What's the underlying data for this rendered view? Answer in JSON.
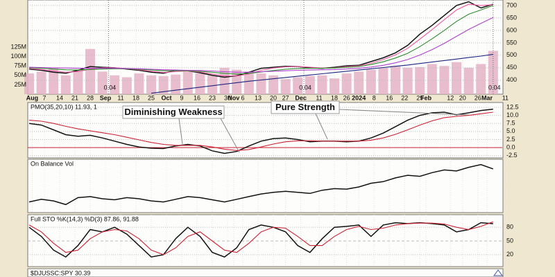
{
  "chart_data": {
    "type": "stock",
    "x": [
      0,
      4,
      8,
      12,
      16,
      20,
      24,
      28,
      32,
      36,
      40,
      44,
      48,
      52,
      56,
      60,
      64,
      68,
      72,
      76,
      80,
      84,
      88,
      92,
      96,
      100,
      104,
      108,
      112,
      116,
      120,
      124,
      128,
      132,
      136,
      140,
      144,
      148,
      152
    ],
    "xlim": [
      0,
      155
    ],
    "xticks": [
      {
        "value": 1,
        "label": "Aug"
      },
      {
        "value": 5,
        "label": "7"
      },
      {
        "value": 10,
        "label": "14"
      },
      {
        "value": 15,
        "label": "21"
      },
      {
        "value": 20,
        "label": "28"
      },
      {
        "value": 25,
        "label": "Sep"
      },
      {
        "value": 30,
        "label": "11"
      },
      {
        "value": 35,
        "label": "18"
      },
      {
        "value": 40,
        "label": "25"
      },
      {
        "value": 45,
        "label": "Oct"
      },
      {
        "value": 50,
        "label": "9"
      },
      {
        "value": 55,
        "label": "16"
      },
      {
        "value": 60,
        "label": "23"
      },
      {
        "value": 65,
        "label": "30"
      },
      {
        "value": 67,
        "label": "Nov"
      },
      {
        "value": 70,
        "label": "6"
      },
      {
        "value": 75,
        "label": "13"
      },
      {
        "value": 80,
        "label": "20"
      },
      {
        "value": 84,
        "label": "27"
      },
      {
        "value": 89,
        "label": "Dec"
      },
      {
        "value": 95,
        "label": "11"
      },
      {
        "value": 100,
        "label": "18"
      },
      {
        "value": 104,
        "label": "26"
      },
      {
        "value": 108,
        "label": "2024"
      },
      {
        "value": 113,
        "label": "8"
      },
      {
        "value": 118,
        "label": "16"
      },
      {
        "value": 123,
        "label": "22"
      },
      {
        "value": 128,
        "label": "29"
      },
      {
        "value": 130,
        "label": "Feb"
      },
      {
        "value": 138,
        "label": "12"
      },
      {
        "value": 142,
        "label": "20"
      },
      {
        "value": 147,
        "label": "26"
      },
      {
        "value": 150,
        "label": "Mar"
      },
      {
        "value": 156,
        "label": "11"
      }
    ],
    "panels": [
      {
        "type": "line",
        "ylim": [
          344,
          722
        ],
        "yticks": [
          400,
          450,
          500,
          550,
          600,
          650,
          700
        ],
        "series": [
          {
            "color": "#111111",
            "values": [
              445,
              440,
              432,
              428,
              440,
              455,
              452,
              450,
              445,
              440,
              432,
              428,
              440,
              438,
              430,
              420,
              412,
              418,
              432,
              448,
              452,
              456,
              455,
              450,
              448,
              452,
              458,
              460,
              475,
              490,
              510,
              540,
              585,
              620,
              660,
              700,
              715,
              690,
              705
            ]
          },
          {
            "color": "#ee5aa0",
            "values": [
              447,
              443,
              437,
              432,
              435,
              445,
              450,
              450,
              447,
              442,
              436,
              431,
              435,
              437,
              433,
              425,
              417,
              417,
              425,
              440,
              449,
              454,
              455,
              452,
              449,
              450,
              455,
              458,
              468,
              483,
              502,
              528,
              565,
              603,
              643,
              682,
              705,
              700,
              703
            ]
          },
          {
            "color": "#2e8b2e",
            "values": [
              450,
              448,
              445,
              442,
              441,
              443,
              445,
              446,
              446,
              444,
              441,
              438,
              438,
              438,
              436,
              432,
              427,
              425,
              427,
              433,
              439,
              444,
              447,
              448,
              448,
              449,
              452,
              455,
              463,
              474,
              489,
              508,
              535,
              566,
              600,
              636,
              665,
              682,
              700
            ]
          },
          {
            "color": "#b040d0",
            "values": [
              452,
              451,
              450,
              449,
              448,
              448,
              448,
              448,
              447,
              446,
              444,
              442,
              441,
              440,
              439,
              437,
              434,
              432,
              432,
              434,
              436,
              438,
              440,
              441,
              442,
              443,
              445,
              448,
              453,
              460,
              470,
              483,
              501,
              523,
              548,
              576,
              604,
              628,
              652
            ]
          },
          {
            "color": "#1a237e",
            "values": [
              null,
              null,
              null,
              null,
              null,
              null,
              null,
              null,
              null,
              null,
              348,
              354,
              360,
              366,
              372,
              378,
              384,
              390,
              396,
              401,
              406,
              411,
              416,
              421,
              426,
              431,
              436,
              441,
              446,
              451,
              456,
              461,
              467,
              473,
              479,
              485,
              491,
              497,
              504
            ]
          }
        ],
        "volume": {
          "color": "#e4b3c6",
          "ylim": [
            0,
            250
          ],
          "yticks": [
            {
              "value": 25,
              "label": "25M"
            },
            {
              "value": 50,
              "label": "50M"
            },
            {
              "value": 75,
              "label": "75M"
            },
            {
              "value": 100,
              "label": "100M"
            },
            {
              "value": 125,
              "label": "125M"
            }
          ],
          "values": [
            55,
            60,
            70,
            50,
            65,
            120,
            60,
            50,
            45,
            55,
            50,
            48,
            52,
            60,
            55,
            50,
            70,
            65,
            60,
            55,
            50,
            40,
            45,
            48,
            50,
            42,
            55,
            60,
            65,
            70,
            75,
            70,
            72,
            80,
            75,
            85,
            70,
            80,
            115
          ]
        },
        "dividends": [
          {
            "x": 26,
            "label": "0.04"
          },
          {
            "x": 90,
            "label": "0.04"
          },
          {
            "x": 152,
            "label": "0.04"
          }
        ]
      },
      {
        "type": "line",
        "title": "PMO(35,20,10) 11.93, 1",
        "ylim": [
          -3.2,
          14
        ],
        "yticks": [
          -2.5,
          {
            "value": 0,
            "label": "0.0"
          },
          2.5,
          {
            "value": 5,
            "label": "5.0"
          },
          7.5,
          {
            "value": 10,
            "label": "10.0"
          },
          12.5
        ],
        "reference_line": 0,
        "series": [
          {
            "color": "#111111",
            "values": [
              7.5,
              7.0,
              5.5,
              4.0,
              3.5,
              3.8,
              3.0,
              2.0,
              1.0,
              0.2,
              -0.2,
              -0.3,
              0.5,
              1.0,
              0.5,
              -1.0,
              -1.8,
              -1.2,
              0.5,
              2.0,
              2.8,
              3.0,
              2.5,
              1.8,
              2.0,
              2.0,
              1.8,
              2.0,
              3.0,
              4.5,
              6.5,
              8.5,
              10.0,
              10.8,
              11.0,
              10.2,
              10.8,
              11.5,
              11.93
            ]
          },
          {
            "color": "#cc2233",
            "values": [
              8.5,
              8.2,
              7.5,
              6.6,
              5.8,
              5.2,
              4.6,
              4.0,
              3.2,
              2.4,
              1.6,
              1.0,
              0.7,
              0.7,
              0.7,
              0.2,
              -0.5,
              -0.9,
              -0.6,
              0.2,
              1.1,
              1.8,
              2.1,
              2.1,
              2.0,
              2.0,
              2.0,
              2.0,
              2.3,
              3.0,
              4.1,
              5.5,
              7.0,
              8.3,
              9.3,
              9.7,
              10.0,
              10.5,
              11.0
            ]
          }
        ],
        "annotations": [
          {
            "text": "Diminishing Weakness",
            "color": "#cc1111"
          },
          {
            "text": "Pure Strength",
            "color": "#227722"
          }
        ]
      },
      {
        "type": "line",
        "title": "On Balance Vol",
        "ylim": [
          0,
          100
        ],
        "series": [
          {
            "color": "#111111",
            "values": [
              20,
              25,
              22,
              15,
              28,
              30,
              26,
              24,
              28,
              26,
              22,
              20,
              25,
              30,
              28,
              24,
              20,
              25,
              30,
              35,
              38,
              40,
              38,
              36,
              42,
              45,
              44,
              48,
              55,
              58,
              65,
              70,
              68,
              75,
              80,
              78,
              85,
              90,
              82
            ]
          }
        ]
      },
      {
        "type": "line",
        "title": "Full STO %K(14,3) %D(3) 87.86, 91.88",
        "ylim": [
          -6,
          107.5
        ],
        "yticks": [
          20,
          50,
          80
        ],
        "series": [
          {
            "color": "#111111",
            "values": [
              80,
              60,
              30,
              15,
              40,
              75,
              70,
              80,
              65,
              40,
              15,
              20,
              55,
              80,
              60,
              25,
              15,
              35,
              75,
              85,
              80,
              70,
              40,
              25,
              55,
              80,
              82,
              85,
              60,
              85,
              90,
              88,
              90,
              88,
              85,
              70,
              75,
              90,
              87.86
            ]
          },
          {
            "color": "#cc2233",
            "values": [
              85,
              70,
              45,
              25,
              30,
              55,
              70,
              75,
              72,
              55,
              30,
              20,
              35,
              60,
              70,
              50,
              30,
              25,
              45,
              70,
              80,
              78,
              60,
              40,
              40,
              60,
              75,
              82,
              75,
              78,
              85,
              88,
              89,
              89,
              87,
              80,
              75,
              82,
              91.88
            ]
          }
        ]
      },
      {
        "type": "ratio",
        "title": "$DJUSSC:SPY 30.39"
      }
    ]
  }
}
